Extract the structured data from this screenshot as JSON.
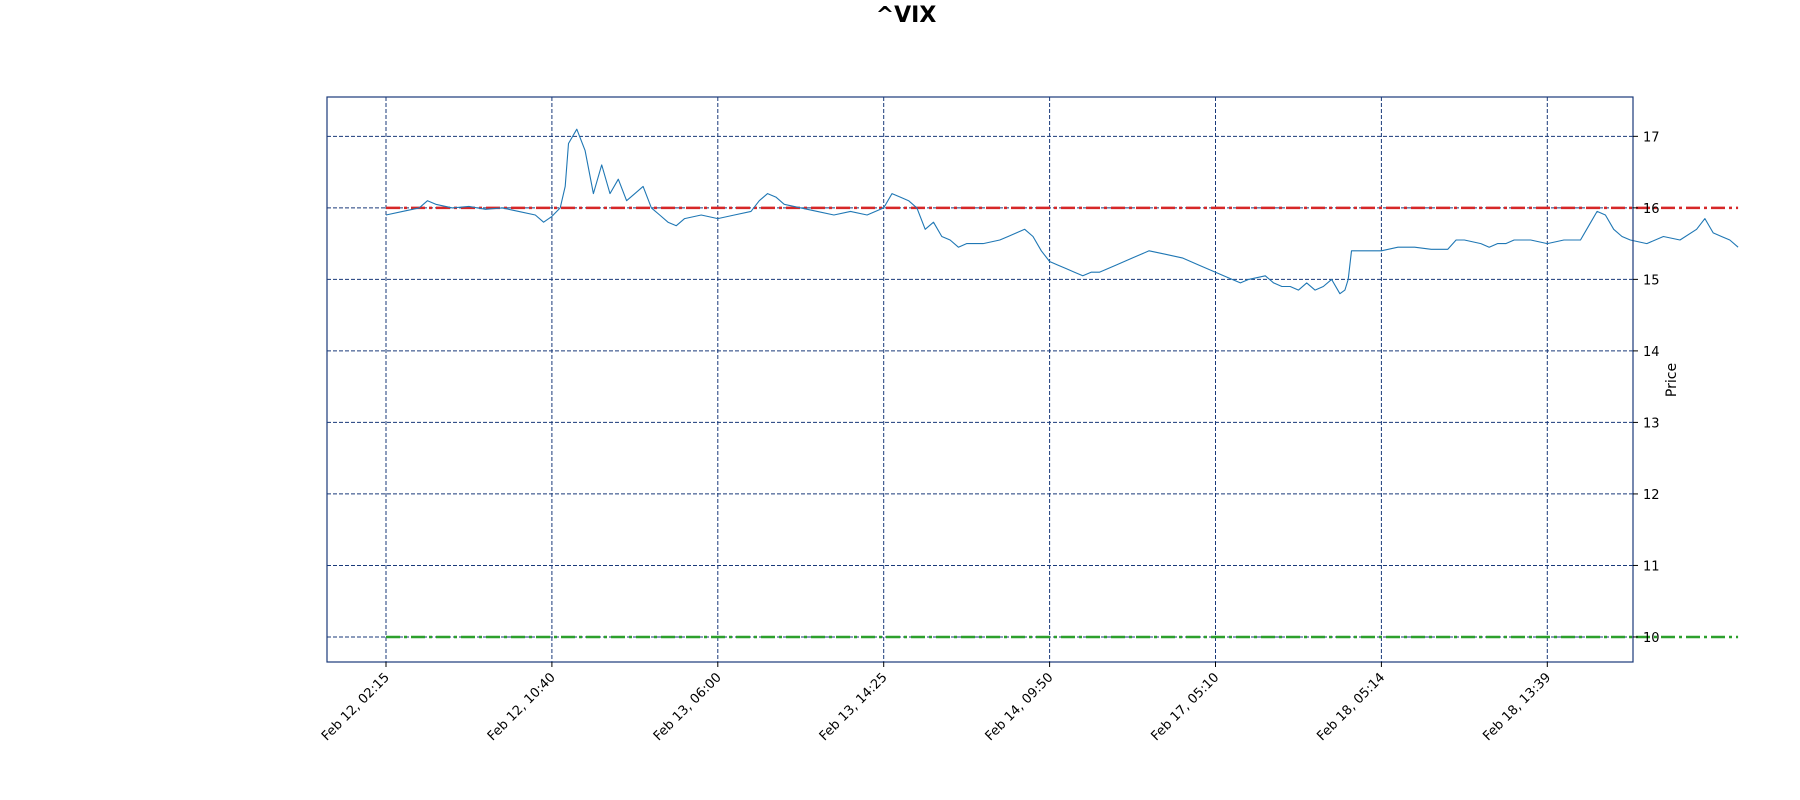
{
  "chart_data": {
    "type": "line",
    "title": "^VIX",
    "xlabel": "",
    "ylabel": "Price",
    "ylim": [
      9.65,
      17.55
    ],
    "yticks": [
      10,
      11,
      12,
      13,
      14,
      15,
      16,
      17
    ],
    "xticks": [
      "Feb 12, 02:15",
      "Feb 12, 10:40",
      "Feb 13, 06:00",
      "Feb 13, 14:25",
      "Feb 14, 09:50",
      "Feb 17, 05:10",
      "Feb 18, 05:14",
      "Feb 18, 13:39"
    ],
    "grid": true,
    "y_axis_side": "right",
    "colors": {
      "series": "#1f77b4",
      "grid": "#1a3a7a",
      "upper_level": "#d62728",
      "lower_level": "#2ca02c"
    },
    "reference_lines": [
      {
        "value": 16.0,
        "style": "dash-dot",
        "color": "#d62728"
      },
      {
        "value": 10.0,
        "style": "dash-dot",
        "color": "#2ca02c"
      }
    ],
    "series": [
      {
        "points": [
          [
            0.0,
            15.9
          ],
          [
            0.1,
            15.95
          ],
          [
            0.2,
            16.0
          ],
          [
            0.25,
            16.1
          ],
          [
            0.3,
            16.05
          ],
          [
            0.4,
            16.0
          ],
          [
            0.5,
            16.02
          ],
          [
            0.6,
            15.98
          ],
          [
            0.7,
            16.0
          ],
          [
            0.8,
            15.95
          ],
          [
            0.9,
            15.9
          ],
          [
            0.95,
            15.8
          ],
          [
            1.0,
            15.88
          ],
          [
            1.05,
            16.0
          ],
          [
            1.08,
            16.3
          ],
          [
            1.1,
            16.9
          ],
          [
            1.15,
            17.1
          ],
          [
            1.2,
            16.8
          ],
          [
            1.25,
            16.2
          ],
          [
            1.3,
            16.6
          ],
          [
            1.35,
            16.2
          ],
          [
            1.4,
            16.4
          ],
          [
            1.45,
            16.1
          ],
          [
            1.5,
            16.2
          ],
          [
            1.55,
            16.3
          ],
          [
            1.6,
            16.0
          ],
          [
            1.65,
            15.9
          ],
          [
            1.7,
            15.8
          ],
          [
            1.75,
            15.75
          ],
          [
            1.8,
            15.85
          ],
          [
            1.9,
            15.9
          ],
          [
            2.0,
            15.85
          ],
          [
            2.1,
            15.9
          ],
          [
            2.2,
            15.95
          ],
          [
            2.25,
            16.1
          ],
          [
            2.3,
            16.2
          ],
          [
            2.35,
            16.15
          ],
          [
            2.4,
            16.05
          ],
          [
            2.5,
            16.0
          ],
          [
            2.6,
            15.95
          ],
          [
            2.7,
            15.9
          ],
          [
            2.8,
            15.95
          ],
          [
            2.9,
            15.9
          ],
          [
            3.0,
            16.0
          ],
          [
            3.05,
            16.2
          ],
          [
            3.1,
            16.15
          ],
          [
            3.15,
            16.1
          ],
          [
            3.2,
            16.0
          ],
          [
            3.25,
            15.7
          ],
          [
            3.3,
            15.8
          ],
          [
            3.35,
            15.6
          ],
          [
            3.4,
            15.55
          ],
          [
            3.45,
            15.45
          ],
          [
            3.5,
            15.5
          ],
          [
            3.6,
            15.5
          ],
          [
            3.7,
            15.55
          ],
          [
            3.75,
            15.6
          ],
          [
            3.8,
            15.65
          ],
          [
            3.85,
            15.7
          ],
          [
            3.9,
            15.6
          ],
          [
            3.95,
            15.4
          ],
          [
            4.0,
            15.25
          ],
          [
            4.05,
            15.2
          ],
          [
            4.1,
            15.15
          ],
          [
            4.15,
            15.1
          ],
          [
            4.2,
            15.05
          ],
          [
            4.25,
            15.1
          ],
          [
            4.3,
            15.1
          ],
          [
            4.4,
            15.2
          ],
          [
            4.5,
            15.3
          ],
          [
            4.6,
            15.4
          ],
          [
            4.7,
            15.35
          ],
          [
            4.8,
            15.3
          ],
          [
            4.9,
            15.2
          ],
          [
            5.0,
            15.1
          ],
          [
            5.1,
            15.0
          ],
          [
            5.15,
            14.95
          ],
          [
            5.2,
            15.0
          ],
          [
            5.3,
            15.05
          ],
          [
            5.35,
            14.95
          ],
          [
            5.4,
            14.9
          ],
          [
            5.45,
            14.9
          ],
          [
            5.5,
            14.85
          ],
          [
            5.55,
            14.95
          ],
          [
            5.6,
            14.85
          ],
          [
            5.65,
            14.9
          ],
          [
            5.7,
            15.0
          ],
          [
            5.75,
            14.8
          ],
          [
            5.78,
            14.85
          ],
          [
            5.8,
            15.0
          ],
          [
            5.82,
            15.4
          ],
          [
            5.9,
            15.4
          ],
          [
            6.0,
            15.4
          ],
          [
            6.1,
            15.45
          ],
          [
            6.2,
            15.45
          ],
          [
            6.3,
            15.42
          ],
          [
            6.4,
            15.42
          ],
          [
            6.45,
            15.55
          ],
          [
            6.5,
            15.55
          ],
          [
            6.6,
            15.5
          ],
          [
            6.65,
            15.45
          ],
          [
            6.7,
            15.5
          ],
          [
            6.75,
            15.5
          ],
          [
            6.8,
            15.55
          ],
          [
            6.9,
            15.55
          ],
          [
            7.0,
            15.5
          ],
          [
            7.1,
            15.55
          ],
          [
            7.2,
            15.55
          ],
          [
            7.25,
            15.75
          ],
          [
            7.3,
            15.95
          ],
          [
            7.35,
            15.9
          ],
          [
            7.4,
            15.7
          ],
          [
            7.45,
            15.6
          ],
          [
            7.5,
            15.55
          ],
          [
            7.6,
            15.5
          ],
          [
            7.7,
            15.6
          ],
          [
            7.8,
            15.55
          ],
          [
            7.9,
            15.7
          ],
          [
            7.95,
            15.85
          ],
          [
            8.0,
            15.65
          ],
          [
            8.05,
            15.6
          ],
          [
            8.1,
            15.55
          ],
          [
            8.15,
            15.45
          ]
        ]
      }
    ]
  }
}
